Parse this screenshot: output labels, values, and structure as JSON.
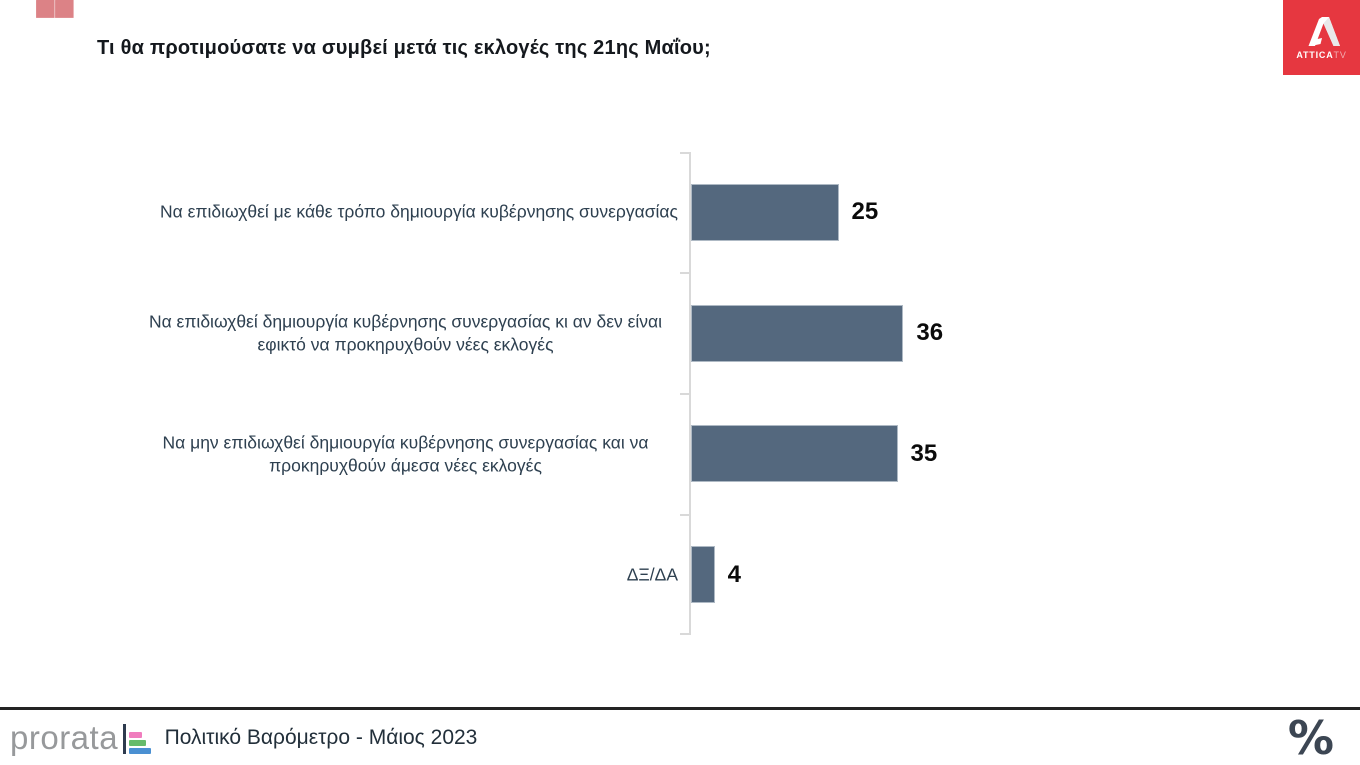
{
  "header": {
    "title": "Τι θα προτιμούσατε να συμβεί μετά τις εκλογές της 21ης Μαΐου;",
    "quote_icon": "❝",
    "quote_color": "#dc8286"
  },
  "attica_logo": {
    "brand": "ATTICA",
    "brand_suffix": "TV",
    "bg_color": "#e63740"
  },
  "chart_data": {
    "type": "bar",
    "orientation": "horizontal",
    "title": "Τι θα προτιμούσατε να συμβεί μετά τις εκλογές της 21ης Μαΐου;",
    "categories": [
      "Να επιδιωχθεί με κάθε τρόπο δημιουργία κυβέρνησης συνεργασίας",
      "Να επιδιωχθεί δημιουργία κυβέρνησης συνεργασίας κι αν δεν είναι εφικτό να προκηρυχθούν νέες εκλογές",
      "Να μην επιδιωχθεί δημιουργία κυβέρνησης συνεργασίας και να προκηρυχθούν άμεσα νέες εκλογές",
      "ΔΞ/ΔΑ"
    ],
    "values": [
      25,
      36,
      35,
      4
    ],
    "xlim": [
      0,
      40
    ],
    "xlabel": "",
    "ylabel": "",
    "grid": false,
    "legend": false,
    "bar_color": "#54687e",
    "axis_color": "#d9d9d9"
  },
  "footer": {
    "prorata_wordmark": "prorata",
    "caption": "Πολιτικό Βαρόμετρο - Μάιος 2023",
    "percent_icon": "%",
    "prorata_icon_bar_colors": [
      "#f07dbe",
      "#66bb6a",
      "#4a90d2"
    ]
  }
}
